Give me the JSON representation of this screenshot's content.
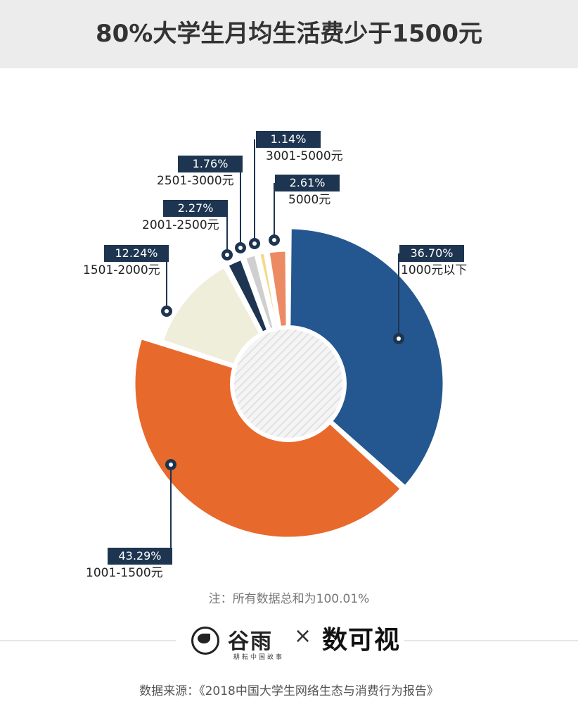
{
  "header": {
    "title": "80%大学生月均生活费少于1500元"
  },
  "chart_data": {
    "type": "pie",
    "title": "80%大学生月均生活费少于1500元",
    "donut": true,
    "slices": [
      {
        "label": "1000元以下",
        "value": 36.7,
        "display": "36.70%",
        "color": "#24578f"
      },
      {
        "label": "1001-1500元",
        "value": 43.29,
        "display": "43.29%",
        "color": "#e8692c"
      },
      {
        "label": "1501-2000元",
        "value": 12.24,
        "display": "12.24%",
        "color": "#efeedb"
      },
      {
        "label": "2001-2500元",
        "value": 2.27,
        "display": "2.27%",
        "color": "#1d3550"
      },
      {
        "label": "2501-3000元",
        "value": 1.76,
        "display": "1.76%",
        "color": "#cfcfcf"
      },
      {
        "label": "3001-5000元",
        "value": 1.14,
        "display": "1.14%",
        "color": "#f6d88a"
      },
      {
        "label": "5000元",
        "value": 2.61,
        "display": "2.61%",
        "color": "#ec8b63"
      }
    ],
    "note": "注：所有数据总和为100.01%"
  },
  "footer": {
    "brand_left": "谷雨",
    "brand_left_sub": "耕耘中国故事",
    "times": "×",
    "brand_right": "数可视",
    "source": "数据来源：《2018中国大学生网络生态与消费行为报告》"
  }
}
